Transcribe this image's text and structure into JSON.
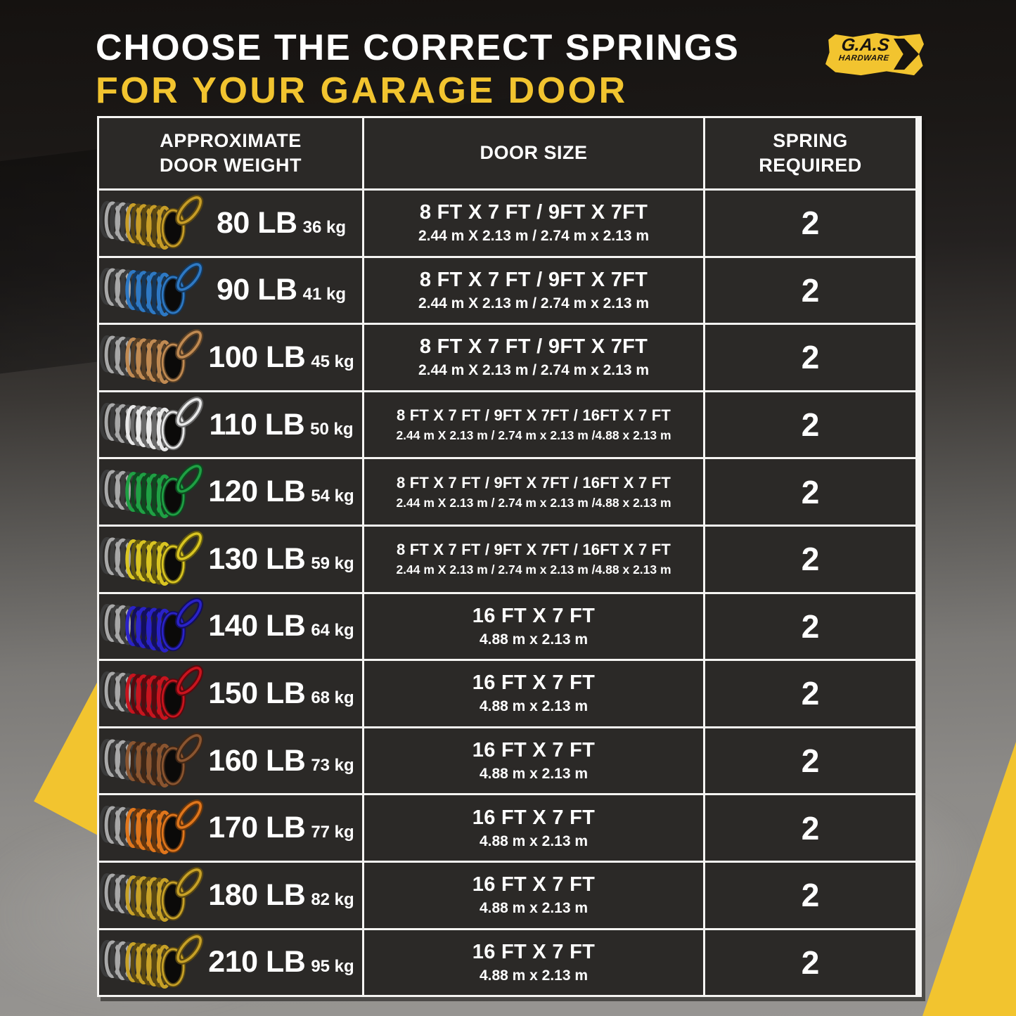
{
  "title": {
    "line1": "CHOOSE THE CORRECT SPRINGS",
    "line2": "FOR YOUR GARAGE DOOR"
  },
  "logo": {
    "brand": "G.A.S",
    "sub": "HARDWARE"
  },
  "colors": {
    "accent_yellow": "#F2C42F",
    "title_white": "#FFFFFF",
    "table_border": "#F5F4F2",
    "cell_background": "#2B2927"
  },
  "chart_data": {
    "type": "table",
    "columns": [
      "APPROXIMATE\nDOOR WEIGHT",
      "DOOR SIZE",
      "SPRING\nREQUIRED"
    ],
    "rows": [
      {
        "weight_lb": "80 LB",
        "weight_kg": "36 kg",
        "spring_color_name": "gold",
        "spring_color": "#C79D27",
        "door_size_ft": "8 FT X 7 FT / 9FT X 7FT",
        "door_size_m": "2.44 m X 2.13 m / 2.74 m x 2.13 m",
        "springs_required": "2"
      },
      {
        "weight_lb": "90 LB",
        "weight_kg": "41 kg",
        "spring_color_name": "blue",
        "spring_color": "#2E79C4",
        "door_size_ft": "8 FT X 7 FT / 9FT X 7FT",
        "door_size_m": "2.44 m X 2.13 m / 2.74 m x 2.13 m",
        "springs_required": "2"
      },
      {
        "weight_lb": "100 LB",
        "weight_kg": "45 kg",
        "spring_color_name": "tan",
        "spring_color": "#C08A52",
        "door_size_ft": "8 FT X 7 FT / 9FT X 7FT",
        "door_size_m": "2.44 m X 2.13 m / 2.74 m x 2.13 m",
        "springs_required": "2"
      },
      {
        "weight_lb": "110 LB",
        "weight_kg": "50 kg",
        "spring_color_name": "white",
        "spring_color": "#E9E9E9",
        "door_size_ft": "8 FT X 7 FT / 9FT X 7FT / 16FT X 7 FT",
        "door_size_m": "2.44 m X 2.13 m / 2.74 m x 2.13 m /4.88 x 2.13 m",
        "springs_required": "2"
      },
      {
        "weight_lb": "120 LB",
        "weight_kg": "54 kg",
        "spring_color_name": "green",
        "spring_color": "#1FA044",
        "door_size_ft": "8 FT X 7 FT / 9FT X 7FT / 16FT X 7 FT",
        "door_size_m": "2.44 m X 2.13 m / 2.74 m x 2.13 m /4.88 x 2.13 m",
        "springs_required": "2"
      },
      {
        "weight_lb": "130 LB",
        "weight_kg": "59 kg",
        "spring_color_name": "yellow",
        "spring_color": "#D9C522",
        "door_size_ft": "8 FT X 7 FT / 9FT X 7FT / 16FT X 7 FT",
        "door_size_m": "2.44 m X 2.13 m / 2.74 m x 2.13 m /4.88 x 2.13 m",
        "springs_required": "2"
      },
      {
        "weight_lb": "140 LB",
        "weight_kg": "64 kg",
        "spring_color_name": "navy-blue",
        "spring_color": "#2A22C8",
        "door_size_ft": "16 FT X 7 FT",
        "door_size_m": "4.88 m x 2.13 m",
        "springs_required": "2"
      },
      {
        "weight_lb": "150 LB",
        "weight_kg": "68 kg",
        "spring_color_name": "red",
        "spring_color": "#C8141E",
        "door_size_ft": "16 FT X 7 FT",
        "door_size_m": "4.88 m x 2.13 m",
        "springs_required": "2"
      },
      {
        "weight_lb": "160 LB",
        "weight_kg": "73 kg",
        "spring_color_name": "brown",
        "spring_color": "#8A5530",
        "door_size_ft": "16 FT X 7 FT",
        "door_size_m": "4.88 m x 2.13 m",
        "springs_required": "2"
      },
      {
        "weight_lb": "170 LB",
        "weight_kg": "77 kg",
        "spring_color_name": "orange",
        "spring_color": "#E0761C",
        "door_size_ft": "16 FT X 7 FT",
        "door_size_m": "4.88 m x 2.13 m",
        "springs_required": "2"
      },
      {
        "weight_lb": "180 LB",
        "weight_kg": "82 kg",
        "spring_color_name": "gold",
        "spring_color": "#C7A127",
        "door_size_ft": "16 FT X 7 FT",
        "door_size_m": "4.88 m x 2.13 m",
        "springs_required": "2"
      },
      {
        "weight_lb": "210 LB",
        "weight_kg": "95 kg",
        "spring_color_name": "gold",
        "spring_color": "#C7A127",
        "door_size_ft": "16 FT X 7 FT",
        "door_size_m": "4.88 m x 2.13 m",
        "springs_required": "2"
      }
    ]
  }
}
